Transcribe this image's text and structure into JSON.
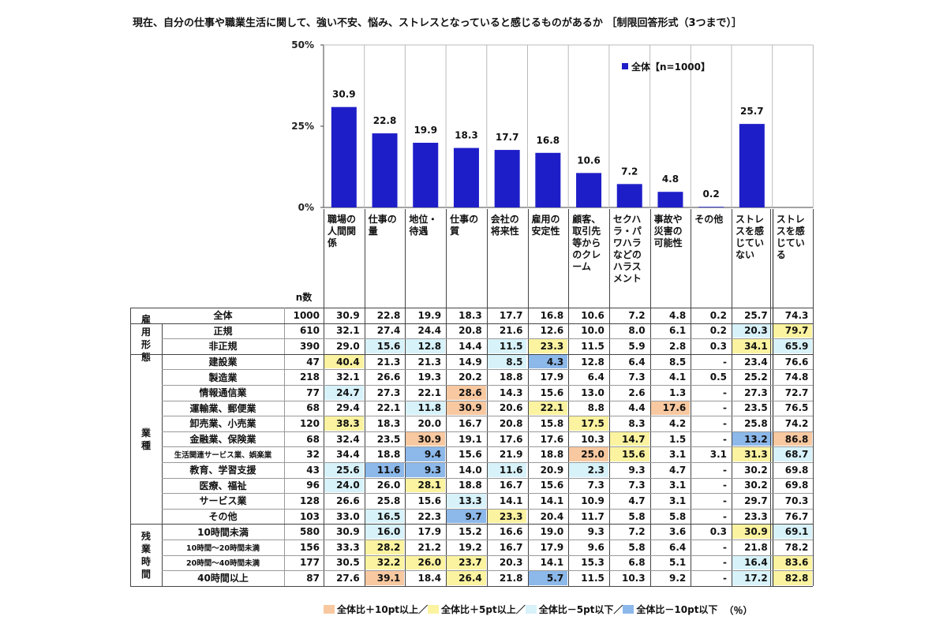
{
  "title": "現在、自分の仕事や職業生活に関して、強い不安、悩み、ストレスとなっていると感じるものがあるか ［制限回答形式（3つまで）］",
  "chart_data": {
    "type": "bar",
    "categories": [
      "職場の人間関係",
      "仕事の量",
      "地位・待遇",
      "仕事の質",
      "会社の将来性",
      "雇用の安定性",
      "顧客、取引先等からのクレーム",
      "セクハラ・パワハラなどのハラスメント",
      "事故や災害の可能性",
      "その他",
      "ストレスを感じていない"
    ],
    "series": [
      {
        "name": "全体【n=1000】",
        "values": [
          30.9,
          22.8,
          19.9,
          18.3,
          17.7,
          16.8,
          10.6,
          7.2,
          4.8,
          0.2,
          25.7
        ]
      }
    ],
    "ylim": [
      0,
      50
    ],
    "yticks": [
      "0%",
      "25%",
      "50%"
    ],
    "legend_position": "top-right",
    "bar_color": "#1e1ec8"
  },
  "table": {
    "headers": [
      "職場の人間関係",
      "仕事の量",
      "地位・待遇",
      "仕事の質",
      "会社の将来性",
      "雇用の安定性",
      "顧客、取引先等からのクレーム",
      "セクハラ・パワハラなどのハラスメント",
      "事故や災害の可能性",
      "その他",
      "ストレスを感じていない",
      "ストレスを感じている"
    ],
    "n_header": "n数",
    "groups": [
      {
        "label": "",
        "rows": [
          0
        ]
      },
      {
        "label": "雇用形態",
        "rows": [
          1,
          2
        ]
      },
      {
        "label": "業種",
        "rows": [
          3,
          4,
          5,
          6,
          7,
          8,
          9,
          10,
          11,
          12,
          13
        ]
      },
      {
        "label": "残業時間",
        "rows": [
          14,
          15,
          16,
          17
        ]
      }
    ],
    "rows": [
      {
        "label": "全体",
        "n": "1000",
        "values": [
          "30.9",
          "22.8",
          "19.9",
          "18.3",
          "17.7",
          "16.8",
          "10.6",
          "7.2",
          "4.8",
          "0.2",
          "25.7",
          "74.3"
        ],
        "hl": [
          0,
          0,
          0,
          0,
          0,
          0,
          0,
          0,
          0,
          0,
          0,
          0
        ]
      },
      {
        "label": "正規",
        "n": "610",
        "values": [
          "32.1",
          "27.4",
          "24.4",
          "20.8",
          "21.6",
          "12.6",
          "10.0",
          "8.0",
          "6.1",
          "0.2",
          "20.3",
          "79.7"
        ],
        "hl": [
          0,
          0,
          0,
          0,
          0,
          0,
          0,
          0,
          0,
          0,
          3,
          2
        ]
      },
      {
        "label": "非正規",
        "n": "390",
        "values": [
          "29.0",
          "15.6",
          "12.8",
          "14.4",
          "11.5",
          "23.3",
          "11.5",
          "5.9",
          "2.8",
          "0.3",
          "34.1",
          "65.9"
        ],
        "hl": [
          0,
          3,
          3,
          0,
          3,
          2,
          0,
          0,
          0,
          0,
          2,
          3
        ]
      },
      {
        "label": "建設業",
        "n": "47",
        "values": [
          "40.4",
          "21.3",
          "21.3",
          "14.9",
          "8.5",
          "4.3",
          "12.8",
          "6.4",
          "8.5",
          "-",
          "23.4",
          "76.6"
        ],
        "hl": [
          2,
          0,
          0,
          0,
          3,
          4,
          0,
          0,
          0,
          0,
          0,
          0
        ]
      },
      {
        "label": "製造業",
        "n": "218",
        "values": [
          "32.1",
          "26.6",
          "19.3",
          "20.2",
          "18.8",
          "17.9",
          "6.4",
          "7.3",
          "4.1",
          "0.5",
          "25.2",
          "74.8"
        ],
        "hl": [
          0,
          0,
          0,
          0,
          0,
          0,
          0,
          0,
          0,
          0,
          0,
          0
        ]
      },
      {
        "label": "情報通信業",
        "n": "77",
        "values": [
          "24.7",
          "27.3",
          "22.1",
          "28.6",
          "14.3",
          "15.6",
          "13.0",
          "2.6",
          "1.3",
          "-",
          "27.3",
          "72.7"
        ],
        "hl": [
          3,
          0,
          0,
          1,
          0,
          0,
          0,
          0,
          0,
          0,
          0,
          0
        ]
      },
      {
        "label": "運輸業、郵便業",
        "n": "68",
        "values": [
          "29.4",
          "22.1",
          "11.8",
          "30.9",
          "20.6",
          "22.1",
          "8.8",
          "4.4",
          "17.6",
          "-",
          "23.5",
          "76.5"
        ],
        "hl": [
          0,
          0,
          3,
          1,
          0,
          2,
          0,
          0,
          1,
          0,
          0,
          0
        ]
      },
      {
        "label": "卸売業、小売業",
        "n": "120",
        "values": [
          "38.3",
          "18.3",
          "20.0",
          "16.7",
          "20.8",
          "15.8",
          "17.5",
          "8.3",
          "4.2",
          "-",
          "25.8",
          "74.2"
        ],
        "hl": [
          2,
          0,
          0,
          0,
          0,
          0,
          2,
          0,
          0,
          0,
          0,
          0
        ]
      },
      {
        "label": "金融業、保険業",
        "n": "68",
        "values": [
          "32.4",
          "23.5",
          "30.9",
          "19.1",
          "17.6",
          "17.6",
          "10.3",
          "14.7",
          "1.5",
          "-",
          "13.2",
          "86.8"
        ],
        "hl": [
          0,
          0,
          1,
          0,
          0,
          0,
          0,
          2,
          0,
          0,
          4,
          1
        ]
      },
      {
        "label": "生活関連サービス業、娯楽業",
        "n": "32",
        "values": [
          "34.4",
          "18.8",
          "9.4",
          "15.6",
          "21.9",
          "18.8",
          "25.0",
          "15.6",
          "3.1",
          "3.1",
          "31.3",
          "68.7"
        ],
        "hl": [
          0,
          0,
          4,
          0,
          0,
          0,
          1,
          2,
          0,
          0,
          2,
          3
        ]
      },
      {
        "label": "教育、学習支援",
        "n": "43",
        "values": [
          "25.6",
          "11.6",
          "9.3",
          "14.0",
          "11.6",
          "20.9",
          "2.3",
          "9.3",
          "4.7",
          "-",
          "30.2",
          "69.8"
        ],
        "hl": [
          3,
          4,
          4,
          0,
          3,
          0,
          3,
          0,
          0,
          0,
          0,
          0
        ]
      },
      {
        "label": "医療、福祉",
        "n": "96",
        "values": [
          "24.0",
          "26.0",
          "28.1",
          "18.8",
          "16.7",
          "15.6",
          "7.3",
          "7.3",
          "3.1",
          "-",
          "30.2",
          "69.8"
        ],
        "hl": [
          3,
          0,
          2,
          0,
          0,
          0,
          0,
          0,
          0,
          0,
          0,
          0
        ]
      },
      {
        "label": "サービス業",
        "n": "128",
        "values": [
          "26.6",
          "25.8",
          "15.6",
          "13.3",
          "14.1",
          "14.1",
          "10.9",
          "4.7",
          "3.1",
          "-",
          "29.7",
          "70.3"
        ],
        "hl": [
          0,
          0,
          0,
          3,
          0,
          0,
          0,
          0,
          0,
          0,
          0,
          0
        ]
      },
      {
        "label": "その他",
        "n": "103",
        "values": [
          "33.0",
          "16.5",
          "22.3",
          "9.7",
          "23.3",
          "20.4",
          "11.7",
          "5.8",
          "5.8",
          "-",
          "23.3",
          "76.7"
        ],
        "hl": [
          0,
          3,
          0,
          4,
          2,
          0,
          0,
          0,
          0,
          0,
          0,
          0
        ]
      },
      {
        "label": "10時間未満",
        "n": "580",
        "values": [
          "30.9",
          "16.0",
          "17.9",
          "15.2",
          "16.6",
          "19.0",
          "9.3",
          "7.2",
          "3.6",
          "0.3",
          "30.9",
          "69.1"
        ],
        "hl": [
          0,
          3,
          0,
          0,
          0,
          0,
          0,
          0,
          0,
          0,
          2,
          3
        ]
      },
      {
        "label": "10時間～20時間未満",
        "n": "156",
        "values": [
          "33.3",
          "28.2",
          "21.2",
          "19.2",
          "16.7",
          "17.9",
          "9.6",
          "5.8",
          "6.4",
          "-",
          "21.8",
          "78.2"
        ],
        "hl": [
          0,
          2,
          0,
          0,
          0,
          0,
          0,
          0,
          0,
          0,
          0,
          0
        ]
      },
      {
        "label": "20時間～40時間未満",
        "n": "177",
        "values": [
          "30.5",
          "32.2",
          "26.0",
          "23.7",
          "20.3",
          "14.1",
          "15.3",
          "6.8",
          "5.1",
          "-",
          "16.4",
          "83.6"
        ],
        "hl": [
          0,
          2,
          2,
          2,
          0,
          0,
          0,
          0,
          0,
          0,
          3,
          2
        ]
      },
      {
        "label": "40時間以上",
        "n": "87",
        "values": [
          "27.6",
          "39.1",
          "18.4",
          "26.4",
          "21.8",
          "5.7",
          "11.5",
          "10.3",
          "9.2",
          "-",
          "17.2",
          "82.8"
        ],
        "hl": [
          0,
          1,
          0,
          2,
          0,
          4,
          0,
          0,
          0,
          0,
          3,
          2
        ]
      }
    ],
    "highlight_colors": {
      "1": "#f8c8a0",
      "2": "#fbf3a0",
      "3": "#d8f2fa",
      "4": "#8cb8ea"
    },
    "legend": [
      {
        "label": "全体比＋10pt以上／",
        "color": "#f8c8a0"
      },
      {
        "label": "全体比＋5pt以上／",
        "color": "#fbf3a0"
      },
      {
        "label": "全体比－5pt以下／",
        "color": "#d8f2fa"
      },
      {
        "label": "全体比－10pt以下",
        "color": "#8cb8ea"
      }
    ],
    "unit": "（％）"
  }
}
